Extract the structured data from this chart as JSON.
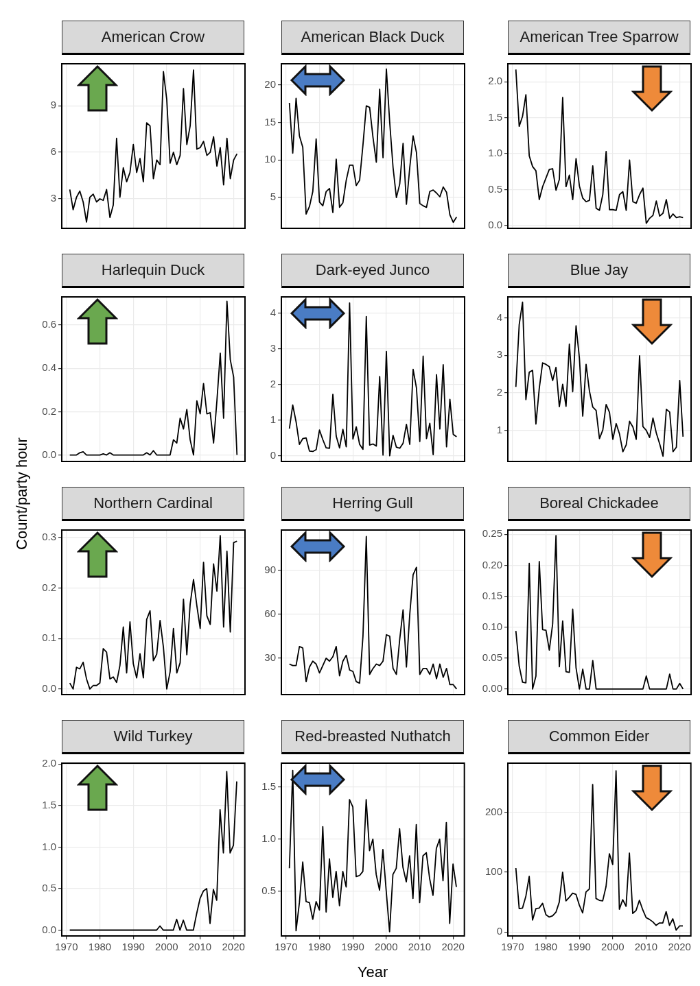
{
  "chart_data": [
    {
      "type": "line",
      "title": "American Crow",
      "x": [
        1971,
        1972,
        1973,
        1974,
        1975,
        1976,
        1977,
        1978,
        1979,
        1980,
        1981,
        1982,
        1983,
        1984,
        1985,
        1986,
        1987,
        1988,
        1989,
        1990,
        1991,
        1992,
        1993,
        1994,
        1995,
        1996,
        1997,
        1998,
        1999,
        2000,
        2001,
        2002,
        2003,
        2004,
        2005,
        2006,
        2007,
        2008,
        2009,
        2010,
        2011,
        2012,
        2013,
        2014,
        2015,
        2016,
        2017,
        2018,
        2019,
        2020,
        2021
      ],
      "values": [
        3.6,
        2.3,
        3.1,
        3.5,
        2.8,
        1.5,
        3.1,
        3.3,
        2.8,
        3.0,
        2.9,
        3.6,
        1.8,
        2.6,
        6.9,
        3.1,
        5.0,
        4.1,
        4.7,
        6.5,
        4.7,
        5.6,
        4.1,
        7.9,
        7.7,
        4.3,
        5.5,
        5.2,
        11.2,
        9.4,
        5.3,
        6.0,
        5.2,
        5.8,
        10.1,
        6.5,
        7.7,
        11.3,
        6.2,
        6.3,
        6.7,
        5.8,
        6.0,
        7.0,
        5.1,
        6.3,
        3.9,
        6.9,
        4.3,
        5.5,
        5.9
      ],
      "color": "#000000",
      "xlim": [
        1968.6,
        2023.4
      ],
      "xticks": [
        1970,
        1980,
        1990,
        2000,
        2010,
        2020
      ],
      "ylim": [
        1.1,
        11.7
      ],
      "yticks": [
        3,
        6,
        9
      ],
      "grid": true,
      "tick_labels": "y"
    },
    {
      "type": "line",
      "title": "American Black Duck",
      "x": [
        1971,
        1972,
        1973,
        1974,
        1975,
        1976,
        1977,
        1978,
        1979,
        1980,
        1981,
        1982,
        1983,
        1984,
        1985,
        1986,
        1987,
        1988,
        1989,
        1990,
        1991,
        1992,
        1993,
        1994,
        1995,
        1996,
        1997,
        1998,
        1999,
        2000,
        2001,
        2002,
        2003,
        2004,
        2005,
        2006,
        2007,
        2008,
        2009,
        2010,
        2011,
        2012,
        2013,
        2014,
        2015,
        2016,
        2017,
        2018,
        2019,
        2020,
        2021
      ],
      "values": [
        17.6,
        10.9,
        18.2,
        13.2,
        11.7,
        2.8,
        3.8,
        5.8,
        12.8,
        4.4,
        3.9,
        5.8,
        6.2,
        3.0,
        10.1,
        3.7,
        4.3,
        7.3,
        9.3,
        9.3,
        6.6,
        7.3,
        12.0,
        17.2,
        17.0,
        13.0,
        9.7,
        19.4,
        10.3,
        22.1,
        15.0,
        9.0,
        5.0,
        6.8,
        12.2,
        4.1,
        9.0,
        13.2,
        11.0,
        4.2,
        3.9,
        3.7,
        5.8,
        6.0,
        5.6,
        5.1,
        6.4,
        5.7,
        2.7,
        1.7,
        2.4
      ],
      "color": "#000000",
      "xlim": [
        1968.6,
        2023.4
      ],
      "xticks": [
        1970,
        1980,
        1990,
        2000,
        2010,
        2020
      ],
      "ylim": [
        0.9,
        22.8
      ],
      "yticks": [
        5,
        10,
        15,
        20
      ],
      "grid": true,
      "tick_labels": "y"
    },
    {
      "type": "line",
      "title": "American Tree Sparrow",
      "x": [
        1971,
        1972,
        1973,
        1974,
        1975,
        1976,
        1977,
        1978,
        1979,
        1980,
        1981,
        1982,
        1983,
        1984,
        1985,
        1986,
        1987,
        1988,
        1989,
        1990,
        1991,
        1992,
        1993,
        1994,
        1995,
        1996,
        1997,
        1998,
        1999,
        2000,
        2001,
        2002,
        2003,
        2004,
        2005,
        2006,
        2007,
        2008,
        2009,
        2010,
        2011,
        2012,
        2013,
        2014,
        2015,
        2016,
        2017,
        2018,
        2019,
        2020,
        2021
      ],
      "values": [
        2.17,
        1.38,
        1.52,
        1.82,
        0.97,
        0.82,
        0.76,
        0.36,
        0.54,
        0.66,
        0.78,
        0.79,
        0.49,
        0.64,
        1.78,
        0.54,
        0.7,
        0.36,
        0.93,
        0.55,
        0.38,
        0.33,
        0.35,
        0.83,
        0.24,
        0.21,
        0.43,
        1.03,
        0.22,
        0.22,
        0.21,
        0.43,
        0.47,
        0.21,
        0.91,
        0.33,
        0.31,
        0.43,
        0.52,
        0.03,
        0.1,
        0.14,
        0.34,
        0.13,
        0.17,
        0.36,
        0.1,
        0.16,
        0.11,
        0.12,
        0.11
      ],
      "color": "#000000",
      "xlim": [
        1968.6,
        2023.4
      ],
      "xticks": [
        1970,
        1980,
        1990,
        2000,
        2010,
        2020
      ],
      "ylim": [
        -0.04,
        2.25
      ],
      "yticks": [
        {
          "value": 0,
          "label": "0.0"
        },
        0.5,
        {
          "value": 1,
          "label": "1.0"
        },
        1.5,
        {
          "value": 2,
          "label": "2.0"
        }
      ],
      "grid": true,
      "tick_labels": "y"
    },
    {
      "type": "line",
      "title": "Harlequin Duck",
      "ylabel": "Count/party hour",
      "x": [
        1971,
        1972,
        1973,
        1974,
        1975,
        1976,
        1977,
        1978,
        1979,
        1980,
        1981,
        1982,
        1983,
        1984,
        1985,
        1986,
        1987,
        1988,
        1989,
        1990,
        1991,
        1992,
        1993,
        1994,
        1995,
        1996,
        1997,
        1998,
        1999,
        2000,
        2001,
        2002,
        2003,
        2004,
        2005,
        2006,
        2007,
        2008,
        2009,
        2010,
        2011,
        2012,
        2013,
        2014,
        2015,
        2016,
        2017,
        2018,
        2019,
        2020,
        2021
      ],
      "values": [
        0,
        0,
        0,
        0.01,
        0.015,
        0,
        0,
        0,
        0,
        0,
        0.005,
        0,
        0.01,
        0,
        0,
        0,
        0,
        0,
        0,
        0,
        0,
        0,
        0,
        0.01,
        0,
        0.02,
        0,
        0,
        0,
        0,
        0,
        0.07,
        0.055,
        0.17,
        0.12,
        0.21,
        0.07,
        0,
        0.25,
        0.19,
        0.33,
        0.19,
        0.195,
        0.055,
        0.25,
        0.47,
        0.17,
        0.71,
        0.44,
        0.36,
        0
      ],
      "color": "#000000",
      "xlim": [
        1968.6,
        2023.4
      ],
      "xticks": [
        1970,
        1980,
        1990,
        2000,
        2010,
        2020
      ],
      "ylim": [
        -0.03,
        0.73
      ],
      "yticks": [
        {
          "value": 0,
          "label": "0.0"
        },
        0.2,
        0.4,
        0.6
      ],
      "grid": true,
      "tick_labels": "y"
    },
    {
      "type": "line",
      "title": "Dark-eyed Junco",
      "x": [
        1971,
        1972,
        1973,
        1974,
        1975,
        1976,
        1977,
        1978,
        1979,
        1980,
        1981,
        1982,
        1983,
        1984,
        1985,
        1986,
        1987,
        1988,
        1989,
        1990,
        1991,
        1992,
        1993,
        1994,
        1995,
        1996,
        1997,
        1998,
        1999,
        2000,
        2001,
        2002,
        2003,
        2004,
        2005,
        2006,
        2007,
        2008,
        2009,
        2010,
        2011,
        2012,
        2013,
        2014,
        2015,
        2016,
        2017,
        2018,
        2019,
        2020,
        2021
      ],
      "values": [
        0.76,
        1.42,
        0.95,
        0.32,
        0.48,
        0.5,
        0.13,
        0.12,
        0.17,
        0.72,
        0.45,
        0.22,
        0.21,
        1.72,
        0.55,
        0.22,
        0.74,
        0.25,
        4.28,
        0.47,
        0.81,
        0.32,
        0.18,
        3.9,
        0.3,
        0.33,
        0.27,
        2.22,
        0.02,
        2.92,
        0,
        0.57,
        0.24,
        0.21,
        0.35,
        0.88,
        0.32,
        2.42,
        1.9,
        0.4,
        2.79,
        0.48,
        0.91,
        0.03,
        2.27,
        0.75,
        2.55,
        0.25,
        1.58,
        0.6,
        0.53
      ],
      "color": "#000000",
      "xlim": [
        1968.6,
        2023.4
      ],
      "xticks": [
        1970,
        1980,
        1990,
        2000,
        2010,
        2020
      ],
      "ylim": [
        -0.16,
        4.45
      ],
      "yticks": [
        0,
        1,
        2,
        3,
        4
      ],
      "grid": true,
      "tick_labels": "y"
    },
    {
      "type": "line",
      "title": "Blue Jay",
      "x": [
        1971,
        1972,
        1973,
        1974,
        1975,
        1976,
        1977,
        1978,
        1979,
        1980,
        1981,
        1982,
        1983,
        1984,
        1985,
        1986,
        1987,
        1988,
        1989,
        1990,
        1991,
        1992,
        1993,
        1994,
        1995,
        1996,
        1997,
        1998,
        1999,
        2000,
        2001,
        2002,
        2003,
        2004,
        2005,
        2006,
        2007,
        2008,
        2009,
        2010,
        2011,
        2012,
        2013,
        2014,
        2015,
        2016,
        2017,
        2018,
        2019,
        2020,
        2021
      ],
      "values": [
        2.16,
        3.82,
        4.42,
        1.82,
        2.55,
        2.6,
        1.17,
        2.12,
        2.8,
        2.76,
        2.7,
        2.33,
        2.68,
        1.63,
        2.23,
        1.64,
        3.3,
        2.03,
        3.79,
        2.93,
        1.38,
        2.76,
        2.05,
        1.62,
        1.53,
        0.78,
        1.01,
        1.69,
        1.48,
        0.76,
        1.18,
        0.9,
        0.43,
        0.61,
        1.24,
        1.09,
        0.76,
        2.99,
        1.1,
        1.0,
        0.81,
        1.33,
        0.93,
        0.64,
        0.31,
        1.56,
        1.49,
        0.43,
        0.55,
        2.33,
        0.83
      ],
      "color": "#000000",
      "xlim": [
        1968.6,
        2023.4
      ],
      "xticks": [
        1970,
        1980,
        1990,
        2000,
        2010,
        2020
      ],
      "ylim": [
        0.17,
        4.56
      ],
      "yticks": [
        1,
        2,
        3,
        4
      ],
      "grid": true,
      "tick_labels": "y"
    },
    {
      "type": "line",
      "title": "Northern Cardinal",
      "x": [
        1971,
        1972,
        1973,
        1974,
        1975,
        1976,
        1977,
        1978,
        1979,
        1980,
        1981,
        1982,
        1983,
        1984,
        1985,
        1986,
        1987,
        1988,
        1989,
        1990,
        1991,
        1992,
        1993,
        1994,
        1995,
        1996,
        1997,
        1998,
        1999,
        2000,
        2001,
        2002,
        2003,
        2004,
        2005,
        2006,
        2007,
        2008,
        2009,
        2010,
        2011,
        2012,
        2013,
        2014,
        2015,
        2016,
        2017,
        2018,
        2019,
        2020,
        2021
      ],
      "values": [
        0.012,
        0,
        0.043,
        0.04,
        0.053,
        0.02,
        0,
        0.007,
        0.007,
        0.012,
        0.08,
        0.073,
        0.02,
        0.024,
        0.013,
        0.047,
        0.123,
        0.032,
        0.133,
        0.05,
        0.022,
        0.07,
        0.022,
        0.138,
        0.155,
        0.056,
        0.069,
        0.136,
        0.083,
        0,
        0.034,
        0.12,
        0.032,
        0.052,
        0.178,
        0.068,
        0.168,
        0.217,
        0.165,
        0.12,
        0.251,
        0.145,
        0.128,
        0.248,
        0.194,
        0.304,
        0.123,
        0.273,
        0.113,
        0.29,
        0.293
      ],
      "color": "#000000",
      "xlim": [
        1968.6,
        2023.4
      ],
      "xticks": [
        1970,
        1980,
        1990,
        2000,
        2010,
        2020
      ],
      "ylim": [
        -0.011,
        0.315
      ],
      "yticks": [
        {
          "value": 0,
          "label": "0.0"
        },
        0.1,
        0.2,
        0.3
      ],
      "grid": true,
      "tick_labels": "y"
    },
    {
      "type": "line",
      "title": "Herring Gull",
      "x": [
        1971,
        1972,
        1973,
        1974,
        1975,
        1976,
        1977,
        1978,
        1979,
        1980,
        1981,
        1982,
        1983,
        1984,
        1985,
        1986,
        1987,
        1988,
        1989,
        1990,
        1991,
        1992,
        1993,
        1994,
        1995,
        1996,
        1997,
        1998,
        1999,
        2000,
        2001,
        2002,
        2003,
        2004,
        2005,
        2006,
        2007,
        2008,
        2009,
        2010,
        2011,
        2012,
        2013,
        2014,
        2015,
        2016,
        2017,
        2018,
        2019,
        2020,
        2021
      ],
      "values": [
        26,
        25,
        25,
        38,
        37,
        14,
        24,
        28,
        26,
        20,
        25,
        30,
        28,
        31,
        38,
        18,
        28,
        32,
        22,
        21,
        14,
        13,
        45,
        113,
        19,
        23,
        26,
        25,
        28,
        46,
        45,
        23,
        19,
        43,
        63,
        24,
        60,
        87,
        92,
        19,
        23,
        23,
        19,
        26,
        16,
        26,
        17,
        23,
        12,
        12,
        9
      ],
      "color": "#000000",
      "xlim": [
        1968.6,
        2023.4
      ],
      "xticks": [
        1970,
        1980,
        1990,
        2000,
        2010,
        2020
      ],
      "ylim": [
        5.2,
        117.4
      ],
      "yticks": [
        30,
        60,
        90
      ],
      "grid": true,
      "tick_labels": "y"
    },
    {
      "type": "line",
      "title": "Boreal Chickadee",
      "x": [
        1971,
        1972,
        1973,
        1974,
        1975,
        1976,
        1977,
        1978,
        1979,
        1980,
        1981,
        1982,
        1983,
        1984,
        1985,
        1986,
        1987,
        1988,
        1989,
        1990,
        1991,
        1992,
        1993,
        1994,
        1995,
        1996,
        1997,
        1998,
        1999,
        2000,
        2001,
        2002,
        2003,
        2004,
        2005,
        2006,
        2007,
        2008,
        2009,
        2010,
        2011,
        2012,
        2013,
        2014,
        2015,
        2016,
        2017,
        2018,
        2019,
        2020,
        2021
      ],
      "values": [
        0.094,
        0.037,
        0.011,
        0.01,
        0.203,
        0,
        0.021,
        0.206,
        0.096,
        0.095,
        0.063,
        0.105,
        0.248,
        0.036,
        0.11,
        0.028,
        0.027,
        0.129,
        0.034,
        0,
        0.032,
        0,
        0,
        0.046,
        0,
        0,
        0,
        0,
        0,
        0,
        0,
        0,
        0,
        0,
        0,
        0,
        0,
        0,
        0,
        0.021,
        0,
        0,
        0,
        0,
        0,
        0,
        0.024,
        0,
        0,
        0.009,
        0
      ],
      "color": "#000000",
      "xlim": [
        1968.6,
        2023.4
      ],
      "xticks": [
        1970,
        1980,
        1990,
        2000,
        2010,
        2020
      ],
      "ylim": [
        -0.009,
        0.257
      ],
      "yticks": [
        {
          "value": 0,
          "label": "0.00"
        },
        {
          "value": 0.05,
          "label": "0.05"
        },
        {
          "value": 0.1,
          "label": "0.10"
        },
        {
          "value": 0.15,
          "label": "0.15"
        },
        {
          "value": 0.2,
          "label": "0.20"
        },
        {
          "value": 0.25,
          "label": "0.25"
        }
      ],
      "grid": true,
      "tick_labels": "y"
    },
    {
      "type": "line",
      "title": "Wild Turkey",
      "x": [
        1971,
        1972,
        1973,
        1974,
        1975,
        1976,
        1977,
        1978,
        1979,
        1980,
        1981,
        1982,
        1983,
        1984,
        1985,
        1986,
        1987,
        1988,
        1989,
        1990,
        1991,
        1992,
        1993,
        1994,
        1995,
        1996,
        1997,
        1998,
        1999,
        2000,
        2001,
        2002,
        2003,
        2004,
        2005,
        2006,
        2007,
        2008,
        2009,
        2010,
        2011,
        2012,
        2013,
        2014,
        2015,
        2016,
        2017,
        2018,
        2019,
        2020,
        2021
      ],
      "values": [
        0,
        0,
        0,
        0,
        0,
        0,
        0,
        0,
        0,
        0,
        0,
        0,
        0,
        0,
        0,
        0,
        0,
        0,
        0,
        0,
        0,
        0,
        0,
        0,
        0,
        0,
        0,
        0.05,
        0,
        0,
        0,
        0,
        0.13,
        0,
        0.12,
        0,
        0,
        0,
        0.2,
        0.38,
        0.47,
        0.5,
        0.08,
        0.49,
        0.36,
        1.45,
        0.93,
        1.91,
        0.93,
        1.02,
        1.79
      ],
      "color": "#000000",
      "xlim": [
        1968.6,
        2023.4
      ],
      "xticks": [
        1970,
        1980,
        1990,
        2000,
        2010,
        2020
      ],
      "ylim": [
        -0.07,
        2.01
      ],
      "yticks": [
        {
          "value": 0,
          "label": "0.0"
        },
        0.5,
        {
          "value": 1,
          "label": "1.0"
        },
        1.5,
        {
          "value": 2,
          "label": "2.0"
        }
      ],
      "grid": true
    },
    {
      "type": "line",
      "title": "Red-breasted Nuthatch",
      "xlabel": "Year",
      "x": [
        1971,
        1972,
        1973,
        1974,
        1975,
        1976,
        1977,
        1978,
        1979,
        1980,
        1981,
        1982,
        1983,
        1984,
        1985,
        1986,
        1987,
        1988,
        1989,
        1990,
        1991,
        1992,
        1993,
        1994,
        1995,
        1996,
        1997,
        1998,
        1999,
        2000,
        2001,
        2002,
        2003,
        2004,
        2005,
        2006,
        2007,
        2008,
        2009,
        2010,
        2011,
        2012,
        2013,
        2014,
        2015,
        2016,
        2017,
        2018,
        2019,
        2020,
        2021
      ],
      "values": [
        0.72,
        1.66,
        0.12,
        0.39,
        0.78,
        0.4,
        0.39,
        0.23,
        0.4,
        0.32,
        1.12,
        0.3,
        0.81,
        0.44,
        0.69,
        0.36,
        0.69,
        0.54,
        1.38,
        1.31,
        0.64,
        0.65,
        0.69,
        1.38,
        0.89,
        1.0,
        0.66,
        0.51,
        0.9,
        0.5,
        0.11,
        0.66,
        0.72,
        1.1,
        0.73,
        0.59,
        0.84,
        0.43,
        1.14,
        0.39,
        0.84,
        0.87,
        0.62,
        0.46,
        0.91,
        1.0,
        0.6,
        1.16,
        0.19,
        0.76,
        0.54
      ],
      "color": "#000000",
      "xlim": [
        1968.6,
        2023.4
      ],
      "xticks": [
        1970,
        1980,
        1990,
        2000,
        2010,
        2020
      ],
      "ylim": [
        0.07,
        1.73
      ],
      "yticks": [
        0.5,
        {
          "value": 1,
          "label": "1.0"
        },
        1.5
      ],
      "grid": true
    },
    {
      "type": "line",
      "title": "Common Eider",
      "x": [
        1971,
        1972,
        1973,
        1974,
        1975,
        1976,
        1977,
        1978,
        1979,
        1980,
        1981,
        1982,
        1983,
        1984,
        1985,
        1986,
        1987,
        1988,
        1989,
        1990,
        1991,
        1992,
        1993,
        1994,
        1995,
        1996,
        1997,
        1998,
        1999,
        2000,
        2001,
        2002,
        2003,
        2004,
        2005,
        2006,
        2007,
        2008,
        2009,
        2010,
        2011,
        2012,
        2013,
        2014,
        2015,
        2016,
        2017,
        2018,
        2019,
        2020,
        2021
      ],
      "values": [
        107,
        39,
        40,
        60,
        93,
        20,
        39,
        40,
        48,
        29,
        25,
        27,
        33,
        50,
        100,
        52,
        58,
        65,
        63,
        45,
        32,
        67,
        72,
        247,
        56,
        53,
        52,
        76,
        131,
        113,
        270,
        38,
        54,
        43,
        132,
        31,
        36,
        53,
        37,
        24,
        21,
        17,
        11,
        15,
        15,
        34,
        11,
        22,
        3,
        10,
        10
      ],
      "color": "#000000",
      "xlim": [
        1968.6,
        2023.4
      ],
      "xticks": [
        1970,
        1980,
        1990,
        2000,
        2010,
        2020
      ],
      "ylim": [
        -6.7,
        282.7
      ],
      "yticks": [
        0,
        100,
        200
      ],
      "grid": true
    }
  ]
}
